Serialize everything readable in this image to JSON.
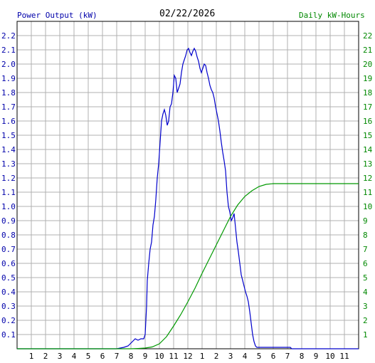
{
  "header": {
    "left_label": "Power Output (kW)",
    "date": "02/22/2026",
    "right_label": "Daily kW-Hours"
  },
  "colors": {
    "power": "#0000cc",
    "energy": "#009900",
    "grid": "#b0b0b0",
    "axis": "#000000",
    "left_text": "#0000aa",
    "right_text": "#008800"
  },
  "chart_data": {
    "type": "line",
    "title": "02/22/2026",
    "x_ticks": [
      "1",
      "2",
      "3",
      "4",
      "5",
      "6",
      "7",
      "8",
      "9",
      "10",
      "11",
      "12",
      "1",
      "2",
      "3",
      "4",
      "5",
      "6",
      "7",
      "8",
      "9",
      "10",
      "11"
    ],
    "y_left": {
      "label": "Power Output (kW)",
      "range": [
        0,
        2.3
      ],
      "ticks": [
        "0.1",
        "0.2",
        "0.3",
        "0.4",
        "0.5",
        "0.6",
        "0.7",
        "0.8",
        "0.9",
        "1.0",
        "1.1",
        "1.2",
        "1.3",
        "1.4",
        "1.5",
        "1.6",
        "1.7",
        "1.8",
        "1.9",
        "2.0",
        "2.1",
        "2.2"
      ]
    },
    "y_right": {
      "label": "Daily kW-Hours",
      "range": [
        0,
        23
      ],
      "ticks": [
        "1",
        "2",
        "3",
        "4",
        "5",
        "6",
        "7",
        "8",
        "9",
        "10",
        "11",
        "12",
        "13",
        "14",
        "15",
        "16",
        "17",
        "18",
        "19",
        "20",
        "21",
        "22"
      ]
    },
    "x_range_hours": [
      0,
      24
    ],
    "series": [
      {
        "name": "Power Output (kW)",
        "axis": "left",
        "x_hours": [
          0,
          7.0,
          7.5,
          7.8,
          8.0,
          8.1,
          8.2,
          8.3,
          8.5,
          8.7,
          8.9,
          9.0,
          9.1,
          9.15,
          9.25,
          9.35,
          9.45,
          9.55,
          9.65,
          9.75,
          9.85,
          9.95,
          10.05,
          10.15,
          10.25,
          10.35,
          10.45,
          10.55,
          10.65,
          10.75,
          10.85,
          10.95,
          11.05,
          11.15,
          11.25,
          11.35,
          11.45,
          11.55,
          11.65,
          11.75,
          11.85,
          11.95,
          12.05,
          12.15,
          12.25,
          12.35,
          12.45,
          12.55,
          12.65,
          12.75,
          12.85,
          12.95,
          13.05,
          13.15,
          13.25,
          13.35,
          13.45,
          13.55,
          13.65,
          13.75,
          13.85,
          13.95,
          14.05,
          14.15,
          14.25,
          14.35,
          14.45,
          14.55,
          14.65,
          14.75,
          14.85,
          14.95,
          15.05,
          15.15,
          15.25,
          15.35,
          15.45,
          15.55,
          15.65,
          15.75,
          15.85,
          15.95,
          16.05,
          16.15,
          16.25,
          16.35,
          16.45,
          16.55,
          16.65,
          16.75,
          16.85,
          16.95,
          17.05,
          17.15,
          17.25,
          17.35,
          17.45,
          17.55,
          17.65,
          17.75,
          17.85,
          17.95,
          18.05,
          18.15,
          18.3,
          18.5,
          18.7,
          18.9,
          19.1,
          19.2,
          19.3,
          24
        ],
        "values": [
          0,
          0,
          0.01,
          0.02,
          0.04,
          0.05,
          0.06,
          0.07,
          0.06,
          0.07,
          0.07,
          0.1,
          0.3,
          0.48,
          0.6,
          0.7,
          0.75,
          0.87,
          0.93,
          1.05,
          1.2,
          1.3,
          1.45,
          1.6,
          1.65,
          1.68,
          1.64,
          1.57,
          1.6,
          1.7,
          1.72,
          1.8,
          1.92,
          1.9,
          1.8,
          1.83,
          1.86,
          1.94,
          2.0,
          2.03,
          2.06,
          2.1,
          2.11,
          2.08,
          2.06,
          2.09,
          2.11,
          2.09,
          2.05,
          2.02,
          1.97,
          1.94,
          1.97,
          2.0,
          1.99,
          1.94,
          1.9,
          1.85,
          1.82,
          1.8,
          1.76,
          1.7,
          1.65,
          1.6,
          1.53,
          1.45,
          1.38,
          1.32,
          1.25,
          1.1,
          1.0,
          0.96,
          0.9,
          0.92,
          0.95,
          0.85,
          0.75,
          0.68,
          0.6,
          0.52,
          0.48,
          0.44,
          0.4,
          0.37,
          0.33,
          0.26,
          0.18,
          0.1,
          0.05,
          0.02,
          0.01,
          0.01,
          0.01,
          0.01,
          0.01,
          0.01,
          0.01,
          0.01,
          0.01,
          0.01,
          0.01,
          0.01,
          0.01,
          0.01,
          0.01,
          0.01,
          0.01,
          0.01,
          0.01,
          0.01,
          0.0,
          0.0
        ]
      },
      {
        "name": "Daily kW-Hours",
        "axis": "right",
        "x_hours": [
          0,
          8.0,
          8.5,
          9.0,
          9.5,
          10.0,
          10.5,
          11.0,
          11.5,
          12.0,
          12.5,
          13.0,
          13.5,
          14.0,
          14.5,
          15.0,
          15.5,
          16.0,
          16.5,
          17.0,
          17.5,
          18.0,
          18.5,
          19.0,
          20.0,
          24
        ],
        "values": [
          0,
          0,
          0.02,
          0.05,
          0.13,
          0.35,
          0.85,
          1.6,
          2.4,
          3.3,
          4.25,
          5.3,
          6.3,
          7.3,
          8.3,
          9.3,
          10.1,
          10.7,
          11.1,
          11.4,
          11.55,
          11.6,
          11.6,
          11.6,
          11.6,
          11.6
        ]
      }
    ],
    "grid": true
  }
}
